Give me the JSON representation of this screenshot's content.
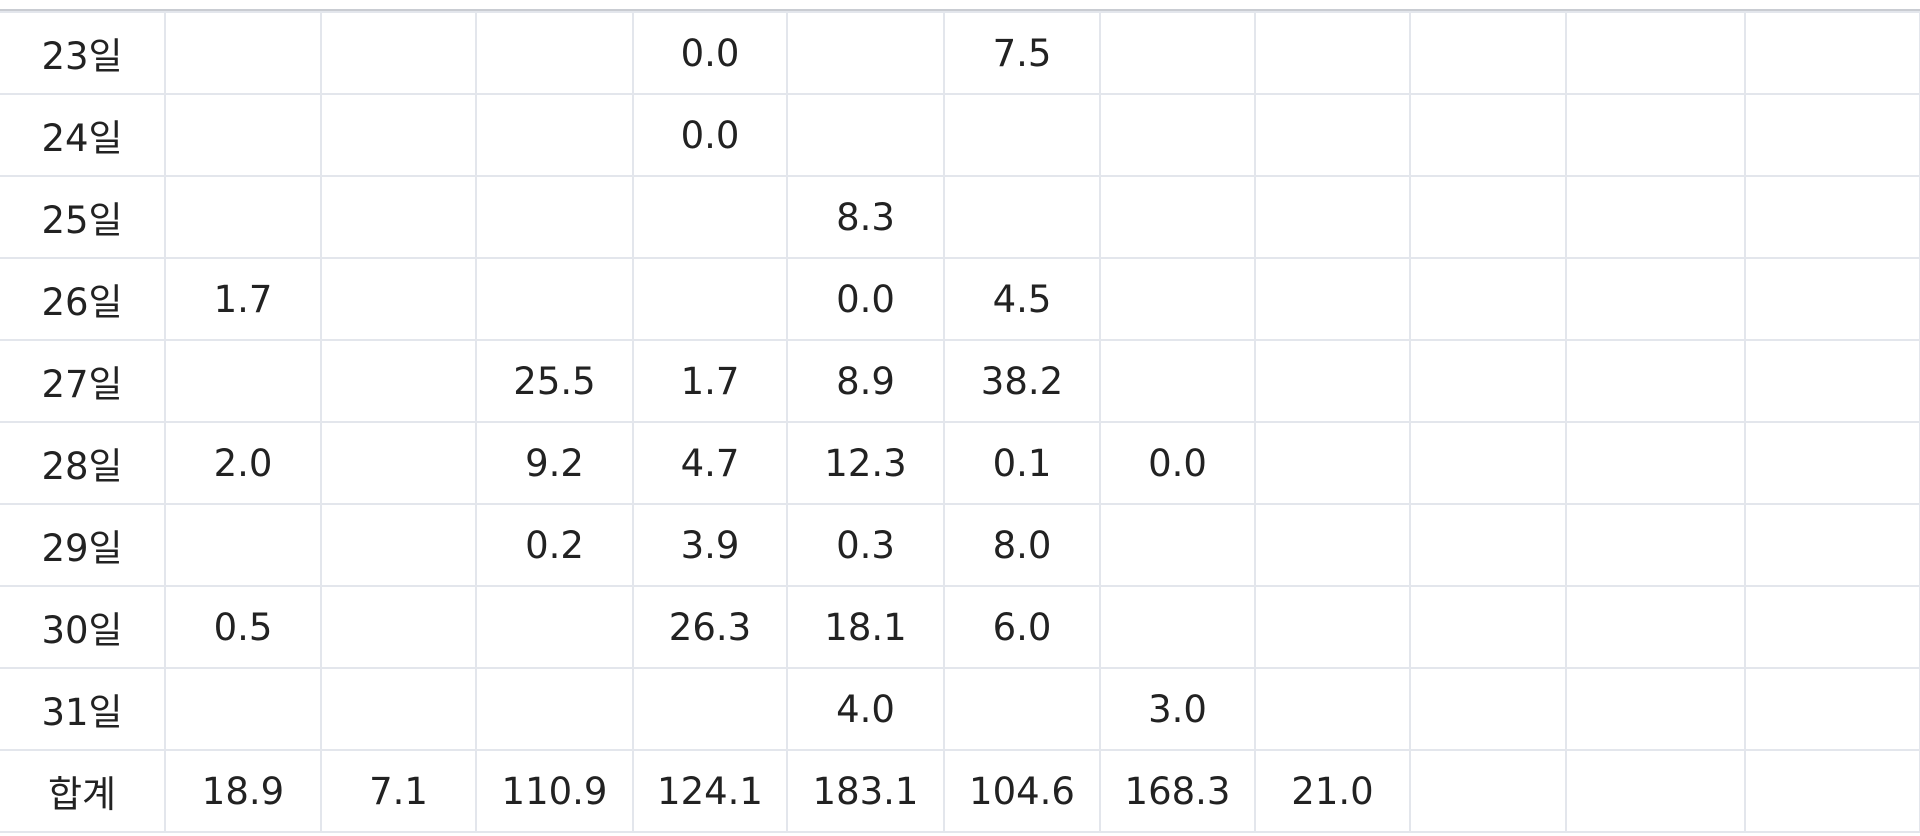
{
  "table": {
    "rows": [
      [
        "23일",
        null,
        null,
        null,
        "0.0",
        null,
        "7.5",
        null,
        null,
        null,
        null,
        null
      ],
      [
        "24일",
        null,
        null,
        null,
        "0.0",
        null,
        null,
        null,
        null,
        null,
        null,
        null
      ],
      [
        "25일",
        null,
        null,
        null,
        null,
        "8.3",
        null,
        null,
        null,
        null,
        null,
        null
      ],
      [
        "26일",
        "1.7",
        null,
        null,
        null,
        "0.0",
        "4.5",
        null,
        null,
        null,
        null,
        null
      ],
      [
        "27일",
        null,
        null,
        "25.5",
        "1.7",
        "8.9",
        "38.2",
        null,
        null,
        null,
        null,
        null
      ],
      [
        "28일",
        "2.0",
        null,
        "9.2",
        "4.7",
        "12.3",
        "0.1",
        "0.0",
        null,
        null,
        null,
        null
      ],
      [
        "29일",
        null,
        null,
        "0.2",
        "3.9",
        "0.3",
        "8.0",
        null,
        null,
        null,
        null,
        null
      ],
      [
        "30일",
        "0.5",
        null,
        null,
        "26.3",
        "18.1",
        "6.0",
        null,
        null,
        null,
        null,
        null
      ],
      [
        "31일",
        null,
        null,
        null,
        null,
        "4.0",
        null,
        "3.0",
        null,
        null,
        null,
        null
      ],
      [
        "합계",
        "18.9",
        "7.1",
        "110.9",
        "124.1",
        "183.1",
        "104.6",
        "168.3",
        "21.0",
        null,
        null,
        null
      ]
    ]
  }
}
